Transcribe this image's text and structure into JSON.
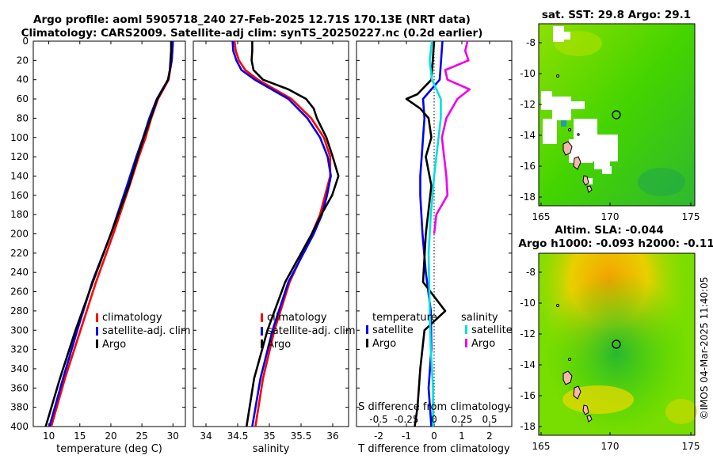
{
  "header": {
    "title_line1": "Argo profile: aoml 5905718_240 27-Feb-2025 12.71S 170.13E (NRT data)",
    "title_line2": "Climatology: CARS2009. Satellite-adj clim: synTS_20250227.nc (0.2d earlier)"
  },
  "colors": {
    "climatology": "#ff0000",
    "satellite": "#0000ee",
    "argo": "#000000",
    "salinity_sat": "#00e0e0",
    "salinity_argo": "#ee00ee"
  },
  "legend": {
    "climatology": "climatology",
    "satellite_adj": "satellite-adj. clim",
    "argo": "Argo",
    "temperature_hdr": "temperature",
    "salinity_hdr": "salinity",
    "satellite": "satellite"
  },
  "maps": {
    "sst_title": "sat. SST: 29.8 Argo: 29.1",
    "sla_title1": "Altim. SLA: -0.044",
    "sla_title2": "Argo h1000: -0.093 h2000: -0.11",
    "x_ticks": [
      "165",
      "170",
      "175"
    ],
    "y_ticks": [
      "-8",
      "-10",
      "-12",
      "-14",
      "-16",
      "-18"
    ],
    "argo_lon": 170.13,
    "argo_lat": -12.71
  },
  "footer": {
    "credit": "©IMOS 04-Mar-2025 11:40:05"
  },
  "chart_data": [
    {
      "type": "line",
      "name": "temperature",
      "xlabel": "temperature (deg C)",
      "ylabel": "depth",
      "xlim": [
        7.5,
        32
      ],
      "ylim": [
        400,
        0
      ],
      "x_ticks": [
        10,
        15,
        20,
        25,
        30
      ],
      "y_ticks": [
        0,
        20,
        40,
        60,
        80,
        100,
        120,
        140,
        160,
        180,
        200,
        220,
        240,
        260,
        280,
        300,
        320,
        340,
        360,
        380,
        400
      ],
      "series": [
        {
          "name": "climatology",
          "depth": [
            0,
            20,
            40,
            60,
            80,
            100,
            120,
            150,
            200,
            250,
            300,
            350,
            400
          ],
          "values": [
            30.0,
            29.8,
            29.3,
            27.6,
            26.5,
            25.6,
            24.5,
            23.0,
            20.4,
            17.6,
            15.1,
            12.6,
            10.4
          ]
        },
        {
          "name": "satellite-adj. clim",
          "depth": [
            0,
            20,
            40,
            60,
            80,
            100,
            120,
            150,
            200,
            250,
            300,
            350,
            400
          ],
          "values": [
            30.0,
            29.8,
            29.2,
            27.4,
            26.2,
            25.2,
            24.1,
            22.6,
            20.0,
            17.0,
            14.6,
            12.3,
            10.1
          ]
        },
        {
          "name": "Argo",
          "depth": [
            0,
            10,
            20,
            30,
            40,
            60,
            80,
            100,
            120,
            150,
            200,
            250,
            300,
            350,
            400
          ],
          "values": [
            29.7,
            29.7,
            29.6,
            29.5,
            29.2,
            27.5,
            26.4,
            25.3,
            24.3,
            22.9,
            20.0,
            17.1,
            14.3,
            11.8,
            9.5
          ]
        }
      ]
    },
    {
      "type": "line",
      "name": "salinity",
      "xlabel": "salinity",
      "ylabel": "depth",
      "xlim": [
        33.8,
        36.25
      ],
      "ylim": [
        400,
        0
      ],
      "x_ticks": [
        34,
        34.5,
        35,
        35.5,
        36
      ],
      "series": [
        {
          "name": "climatology",
          "depth": [
            0,
            10,
            20,
            30,
            40,
            60,
            80,
            100,
            120,
            140,
            160,
            180,
            200,
            250,
            300,
            350,
            400
          ],
          "values": [
            34.45,
            34.47,
            34.52,
            34.62,
            34.82,
            35.35,
            35.66,
            35.86,
            35.96,
            35.96,
            35.88,
            35.8,
            35.67,
            35.32,
            35.08,
            34.9,
            34.78
          ]
        },
        {
          "name": "satellite-adj. clim",
          "depth": [
            0,
            10,
            20,
            30,
            40,
            60,
            80,
            100,
            120,
            140,
            160,
            180,
            200,
            250,
            300,
            350,
            400
          ],
          "values": [
            34.42,
            34.43,
            34.48,
            34.56,
            34.77,
            35.3,
            35.6,
            35.8,
            35.92,
            35.97,
            35.91,
            35.83,
            35.7,
            35.3,
            35.05,
            34.86,
            34.73
          ]
        },
        {
          "name": "Argo",
          "depth": [
            0,
            10,
            20,
            30,
            40,
            50,
            60,
            70,
            80,
            100,
            120,
            140,
            160,
            180,
            200,
            250,
            300,
            350,
            400
          ],
          "values": [
            34.73,
            34.73,
            34.72,
            34.75,
            34.9,
            35.3,
            35.58,
            35.7,
            35.75,
            35.9,
            36.0,
            36.09,
            35.99,
            35.82,
            35.67,
            35.25,
            34.97,
            34.76,
            34.64
          ]
        }
      ]
    },
    {
      "type": "line",
      "name": "differences",
      "xlabel": "T difference from climatology",
      "x2label": "S difference from climatology",
      "xlim": [
        -2.8,
        2.8
      ],
      "s_xlim": [
        -0.7,
        0.7
      ],
      "x_ticks": [
        -2,
        -1,
        0,
        1,
        2
      ],
      "s_x_ticks": [
        "-0.5",
        "-0.25",
        "0",
        "0.25",
        "0.5"
      ],
      "series": [
        {
          "name": "temperature satellite",
          "depth": [
            0,
            40,
            60,
            80,
            100,
            120,
            140,
            160,
            200,
            240,
            280,
            320,
            360,
            400
          ],
          "values": [
            0.3,
            0.2,
            -0.4,
            -0.35,
            -0.4,
            -0.45,
            -0.5,
            -0.5,
            -0.42,
            -0.3,
            -0.12,
            -0.1,
            -0.2,
            -0.1
          ]
        },
        {
          "name": "temperature Argo",
          "depth": [
            0,
            40,
            55,
            60,
            70,
            80,
            100,
            120,
            150,
            200,
            250,
            280,
            300,
            340,
            380,
            400
          ],
          "values": [
            0.0,
            -0.1,
            -0.6,
            -1.0,
            -0.5,
            -0.2,
            -0.1,
            -0.3,
            -0.1,
            -0.3,
            -0.4,
            0.4,
            -0.35,
            -0.5,
            -0.6,
            -0.7
          ]
        },
        {
          "name": "salinity satellite",
          "depth": [
            0,
            20,
            40,
            60,
            80,
            100,
            140,
            180,
            220,
            280,
            320,
            360,
            400
          ],
          "values": [
            -0.02,
            -0.04,
            -0.02,
            0.06,
            0.06,
            0.04,
            0.0,
            -0.03,
            -0.05,
            -0.04,
            -0.03,
            -0.01,
            -0.01
          ]
        },
        {
          "name": "salinity Argo",
          "depth": [
            0,
            10,
            20,
            30,
            40,
            50,
            60,
            80,
            100,
            120,
            140,
            160,
            180,
            200
          ],
          "values": [
            0.3,
            0.28,
            0.31,
            0.1,
            0.12,
            0.32,
            0.21,
            0.11,
            0.07,
            0.09,
            0.11,
            0.12,
            0.02,
            0.0
          ]
        }
      ]
    }
  ]
}
